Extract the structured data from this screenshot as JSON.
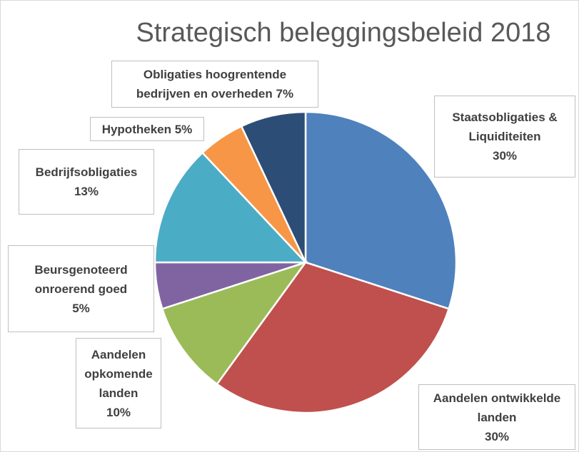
{
  "chart_data": {
    "type": "pie",
    "title": "Strategisch beleggingsbeleid 2018",
    "categories": [
      "Staatsobligaties & Liquiditeiten",
      "Aandelen ontwikkelde landen",
      "Aandelen opkomende landen",
      "Beursgenoteerd onroerend goed",
      "Bedrijfsobligaties",
      "Hypotheken",
      "Obligaties hoogrentende bedrijven en overheden"
    ],
    "values": [
      30,
      30,
      10,
      5,
      13,
      5,
      7
    ],
    "value_labels": [
      "30%",
      "30%",
      "10%",
      "5%",
      "13%",
      "5%",
      "7%"
    ],
    "colors": [
      "#4f81bd",
      "#c0504d",
      "#9bbb59",
      "#8064a2",
      "#4bacc6",
      "#f79646",
      "#2c4d75"
    ]
  }
}
